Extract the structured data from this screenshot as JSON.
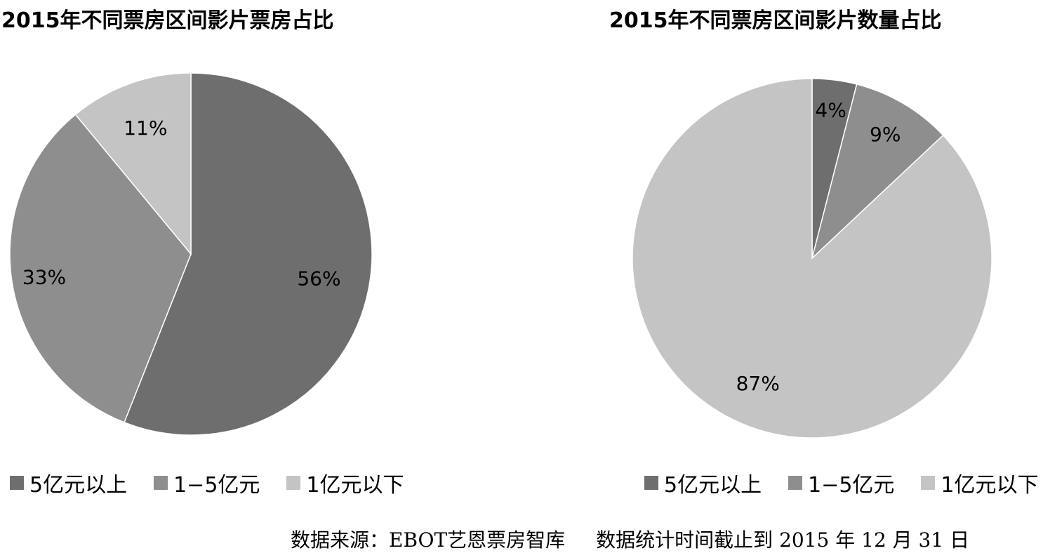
{
  "colors": {
    "dark": "#6e6e6e",
    "mid": "#8e8e8e",
    "light": "#c4c4c4",
    "stroke": "#ffffff"
  },
  "chart_data": [
    {
      "type": "pie",
      "title": "2015年不同票房区间影片票房占比",
      "categories": [
        "5亿元以上",
        "1−5亿元",
        "1亿元以下"
      ],
      "values": [
        56,
        33,
        11
      ],
      "labels": [
        "56%",
        "33%",
        "11%"
      ],
      "legend_position": "bottom"
    },
    {
      "type": "pie",
      "title": "2015年不同票房区间影片数量占比",
      "categories": [
        "5亿元以上",
        "1−5亿元",
        "1亿元以下"
      ],
      "values": [
        4,
        9,
        87
      ],
      "labels": [
        "4%",
        "9%",
        "87%"
      ],
      "legend_position": "bottom"
    }
  ],
  "source": {
    "origin": "数据来源：EBOT艺恩票房智库",
    "note": "数据统计时间截止到 2015 年 12 月 31 日"
  }
}
